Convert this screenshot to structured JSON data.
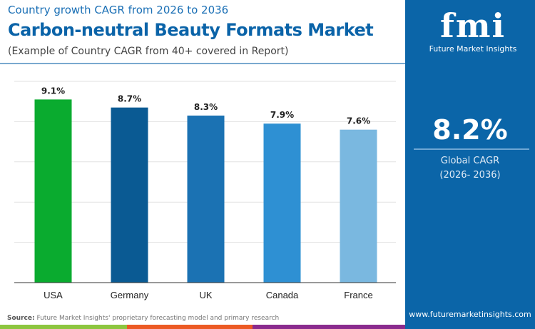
{
  "header": {
    "subtitle": "Country growth CAGR from 2026 to 2036",
    "title": "Carbon-neutral Beauty Formats Market",
    "note": "(Example of Country CAGR from 40+ covered in Report)"
  },
  "panel": {
    "logo_text": "fmi",
    "logo_name": "Future Market Insights",
    "value": "8.2%",
    "label": "Global CAGR",
    "period": "(2026- 2036)",
    "website": "www.futuremarketinsights.com"
  },
  "footer": {
    "source_label": "Source:",
    "source_text": "Future Market Insights' proprietary forecasting model and primary research"
  },
  "chart_data": {
    "type": "bar",
    "categories": [
      "USA",
      "Germany",
      "UK",
      "Canada",
      "France"
    ],
    "values": [
      9.1,
      8.7,
      8.3,
      7.9,
      7.6
    ],
    "labels": [
      "9.1%",
      "8.7%",
      "8.3%",
      "7.9%",
      "7.6%"
    ],
    "colors": [
      "#0aab2f",
      "#0a5a93",
      "#1b72b3",
      "#2e90d3",
      "#7ab8e0"
    ],
    "ylim": [
      0,
      10
    ],
    "grid": true
  }
}
